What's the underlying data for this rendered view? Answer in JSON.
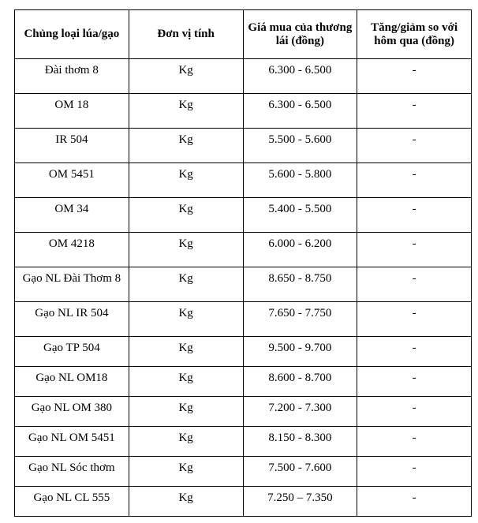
{
  "headers": [
    "Chủng loại lúa/gạo",
    "Đơn vị tính",
    "Giá mua của thương lái (đồng)",
    "Tăng/giảm so với hôm qua (đồng)"
  ],
  "rows": [
    [
      "Đài thơm 8",
      "Kg",
      "6.300 - 6.500",
      "-"
    ],
    [
      "OM 18",
      "Kg",
      "6.300 - 6.500",
      "-"
    ],
    [
      "IR 504",
      "Kg",
      "5.500 - 5.600",
      "-"
    ],
    [
      "OM 5451",
      "Kg",
      "5.600 - 5.800",
      "-"
    ],
    [
      "OM 34",
      "Kg",
      "5.400 - 5.500",
      "-"
    ],
    [
      "OM 4218",
      "Kg",
      "6.000 - 6.200",
      "-"
    ],
    [
      "Gạo NL Đài Thơm 8",
      "Kg",
      "8.650 - 8.750",
      "-"
    ],
    [
      "Gạo NL IR 504",
      "Kg",
      "7.650 - 7.750",
      "-"
    ],
    [
      "Gạo TP 504",
      "Kg",
      "9.500 - 9.700",
      "-"
    ],
    [
      "Gạo NL OM18",
      "Kg",
      "8.600 - 8.700",
      "-"
    ],
    [
      "Gạo NL OM 380",
      "Kg",
      "7.200 - 7.300",
      "-"
    ],
    [
      "Gạo NL OM 5451",
      "Kg",
      "8.150 - 8.300",
      "-"
    ],
    [
      "Gạo NL Sóc thơm",
      "Kg",
      "7.500 - 7.600",
      "-"
    ],
    [
      "Gạo NL CL 555",
      "Kg",
      "7.250 – 7.350",
      "-"
    ]
  ]
}
